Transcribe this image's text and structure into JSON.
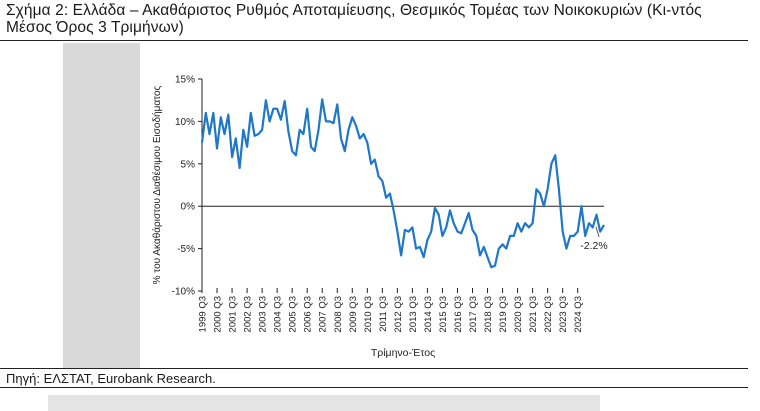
{
  "title": "Σχήμα 2: Ελλάδα – Ακαθάριστος Ρυθμός Αποταμίευσης, Θεσμικός Τομέας των Νοικοκυριών (Κι-ντός Μέσος Όρος 3 Τριμήνων)",
  "source": "Πηγή: ΕΛΣΤΑΤ, Eurobank Research.",
  "colors": {
    "line": "#1f77c8",
    "axis": "#222222",
    "background": "#ffffff",
    "panel": "#d9d9d9"
  },
  "chart_data": {
    "type": "line",
    "title": "",
    "xlabel": "Τρίμηνο-Έτος",
    "ylabel": "% του Ακαθάριστου Διαθέσιμου Εισοδήματος",
    "ylim": [
      -10,
      15
    ],
    "yticks": [
      15,
      10,
      5,
      0,
      -5,
      -10
    ],
    "ytick_labels": [
      "15%",
      "10%",
      "5%",
      "0%",
      "-5%",
      "-10%"
    ],
    "xtick_labels": [
      "1999 Q3",
      "2000 Q3",
      "2001 Q3",
      "2002 Q3",
      "2003 Q3",
      "2004 Q3",
      "2005 Q3",
      "2006 Q3",
      "2007 Q3",
      "2008 Q3",
      "2009 Q3",
      "2010 Q3",
      "2011 Q3",
      "2012 Q3",
      "2013 Q3",
      "2014 Q3",
      "2015 Q3",
      "2016 Q3",
      "2017 Q3",
      "2018 Q3",
      "2019 Q3",
      "2020 Q3",
      "2021 Q3",
      "2022 Q3",
      "2023 Q3",
      "2024 Q3"
    ],
    "annotation": {
      "text": "-2.2%"
    },
    "series": [
      {
        "name": "Ακαθάριστος Ρυθμός Αποταμίευσης",
        "start": "1999 Q3",
        "values": [
          7.5,
          11.0,
          8.5,
          11.0,
          6.8,
          10.5,
          8.5,
          10.8,
          5.8,
          8.0,
          4.5,
          9.0,
          7.0,
          11.0,
          8.3,
          8.5,
          9.0,
          12.5,
          10.0,
          11.5,
          11.5,
          10.2,
          12.4,
          8.8,
          6.5,
          6.0,
          9.0,
          8.5,
          11.5,
          7.0,
          6.5,
          9.0,
          12.6,
          10.0,
          10.0,
          9.8,
          12.0,
          8.0,
          6.5,
          9.0,
          10.5,
          9.5,
          8.0,
          8.5,
          7.5,
          5.0,
          5.5,
          3.5,
          3.0,
          1.0,
          1.5,
          -0.5,
          -3.0,
          -5.8,
          -2.8,
          -3.0,
          -2.5,
          -5.0,
          -4.8,
          -6.0,
          -4.0,
          -3.0,
          -0.2,
          -1.0,
          -3.5,
          -2.5,
          -0.5,
          -2.0,
          -3.0,
          -3.2,
          -2.0,
          -0.8,
          -2.8,
          -3.5,
          -5.8,
          -4.8,
          -6.0,
          -7.2,
          -7.0,
          -5.0,
          -4.5,
          -5.0,
          -3.5,
          -3.5,
          -2.0,
          -3.0,
          -2.0,
          -2.5,
          -2.0,
          2.0,
          1.5,
          0.0,
          2.0,
          5.0,
          6.0,
          2.0,
          -3.0,
          -5.0,
          -3.5,
          -3.5,
          -3.0,
          0.0,
          -3.5,
          -2.0,
          -2.5,
          -1.0,
          -3.0,
          -2.2
        ]
      }
    ]
  }
}
